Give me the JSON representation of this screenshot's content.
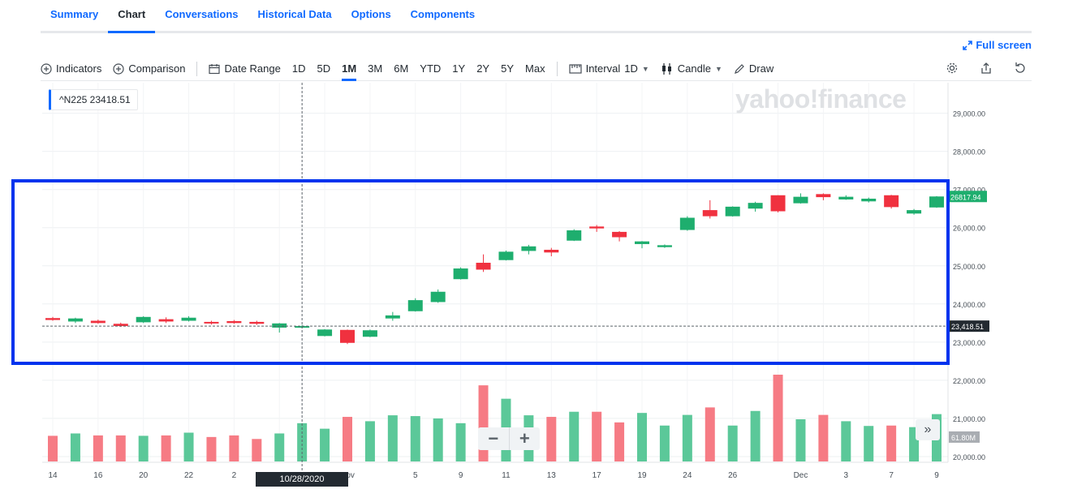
{
  "tabs": [
    {
      "label": "Summary",
      "active": false
    },
    {
      "label": "Chart",
      "active": true
    },
    {
      "label": "Conversations",
      "active": false
    },
    {
      "label": "Historical Data",
      "active": false
    },
    {
      "label": "Options",
      "active": false
    },
    {
      "label": "Components",
      "active": false
    }
  ],
  "fullscreen_label": "Full screen",
  "toolbar": {
    "indicators": "Indicators",
    "comparison": "Comparison",
    "date_range": "Date Range",
    "ranges": [
      "1D",
      "5D",
      "1M",
      "3M",
      "6M",
      "YTD",
      "1Y",
      "2Y",
      "5Y",
      "Max"
    ],
    "active_range": "1M",
    "interval_label": "Interval",
    "interval_value": "1D",
    "chart_style": "Candle",
    "draw": "Draw"
  },
  "legend": {
    "symbol": "^N225",
    "value": "23418.51"
  },
  "watermark": "yahoo!finance",
  "cursor_date": "10/28/2020",
  "colors": {
    "up": "#1eae6e",
    "down": "#f0313f",
    "vol_up": "#5bc899",
    "vol_down": "#f67b84",
    "accent": "#0f69ff",
    "highlight": "#0033ee"
  },
  "chart_data": {
    "type": "candlestick",
    "ylim": [
      19850,
      29800
    ],
    "y_ticks": [
      "29,000.00",
      "28,000.00",
      "27,000.00",
      "26,000.00",
      "25,000.00",
      "24,000.00",
      "23,000.00",
      "22,000.00",
      "21,000.00",
      "20,000.00"
    ],
    "y_tick_values": [
      29000,
      28000,
      27000,
      26000,
      25000,
      24000,
      23000,
      22000,
      21000,
      20000
    ],
    "x_tick_labels": [
      {
        "label": "14",
        "i": 0
      },
      {
        "label": "16",
        "i": 2
      },
      {
        "label": "20",
        "i": 4
      },
      {
        "label": "22",
        "i": 6
      },
      {
        "label": "2",
        "i": 8
      },
      {
        "label": "Nov",
        "i": 13
      },
      {
        "label": "5",
        "i": 16
      },
      {
        "label": "9",
        "i": 18
      },
      {
        "label": "11",
        "i": 20
      },
      {
        "label": "13",
        "i": 22
      },
      {
        "label": "17",
        "i": 24
      },
      {
        "label": "19",
        "i": 26
      },
      {
        "label": "24",
        "i": 28
      },
      {
        "label": "26",
        "i": 30
      },
      {
        "label": "Dec",
        "i": 33
      },
      {
        "label": "3",
        "i": 35
      },
      {
        "label": "7",
        "i": 37
      },
      {
        "label": "9",
        "i": 39
      }
    ],
    "candles": [
      {
        "o": 23630,
        "h": 23660,
        "l": 23560,
        "c": 23580
      },
      {
        "o": 23540,
        "h": 23640,
        "l": 23500,
        "c": 23620
      },
      {
        "o": 23560,
        "h": 23590,
        "l": 23480,
        "c": 23500
      },
      {
        "o": 23480,
        "h": 23510,
        "l": 23400,
        "c": 23420
      },
      {
        "o": 23520,
        "h": 23680,
        "l": 23500,
        "c": 23660
      },
      {
        "o": 23600,
        "h": 23650,
        "l": 23500,
        "c": 23540
      },
      {
        "o": 23560,
        "h": 23680,
        "l": 23540,
        "c": 23640
      },
      {
        "o": 23530,
        "h": 23560,
        "l": 23460,
        "c": 23490
      },
      {
        "o": 23550,
        "h": 23580,
        "l": 23480,
        "c": 23500
      },
      {
        "o": 23530,
        "h": 23560,
        "l": 23450,
        "c": 23480
      },
      {
        "o": 23380,
        "h": 23500,
        "l": 23250,
        "c": 23490
      },
      {
        "o": 23400,
        "h": 23450,
        "l": 23360,
        "c": 23420
      },
      {
        "o": 23160,
        "h": 23340,
        "l": 23150,
        "c": 23330
      },
      {
        "o": 23320,
        "h": 23330,
        "l": 22950,
        "c": 22980
      },
      {
        "o": 23140,
        "h": 23330,
        "l": 23130,
        "c": 23310
      },
      {
        "o": 23620,
        "h": 23790,
        "l": 23560,
        "c": 23700
      },
      {
        "o": 23810,
        "h": 24150,
        "l": 23800,
        "c": 24100
      },
      {
        "o": 24050,
        "h": 24380,
        "l": 24030,
        "c": 24320
      },
      {
        "o": 24650,
        "h": 24960,
        "l": 24640,
        "c": 24930
      },
      {
        "o": 25080,
        "h": 25300,
        "l": 24840,
        "c": 24900
      },
      {
        "o": 25150,
        "h": 25400,
        "l": 25140,
        "c": 25370
      },
      {
        "o": 25390,
        "h": 25550,
        "l": 25300,
        "c": 25510
      },
      {
        "o": 25420,
        "h": 25470,
        "l": 25250,
        "c": 25350
      },
      {
        "o": 25660,
        "h": 25960,
        "l": 25650,
        "c": 25930
      },
      {
        "o": 26030,
        "h": 26070,
        "l": 25890,
        "c": 25980
      },
      {
        "o": 25890,
        "h": 25910,
        "l": 25640,
        "c": 25750
      },
      {
        "o": 25570,
        "h": 25650,
        "l": 25460,
        "c": 25640
      },
      {
        "o": 25490,
        "h": 25560,
        "l": 25470,
        "c": 25540
      },
      {
        "o": 25940,
        "h": 26300,
        "l": 25920,
        "c": 26260
      },
      {
        "o": 26460,
        "h": 26720,
        "l": 26240,
        "c": 26300
      },
      {
        "o": 26300,
        "h": 26560,
        "l": 26290,
        "c": 26550
      },
      {
        "o": 26500,
        "h": 26680,
        "l": 26420,
        "c": 26650
      },
      {
        "o": 26850,
        "h": 26850,
        "l": 26400,
        "c": 26430
      },
      {
        "o": 26640,
        "h": 26900,
        "l": 26630,
        "c": 26810
      },
      {
        "o": 26880,
        "h": 26900,
        "l": 26720,
        "c": 26800
      },
      {
        "o": 26740,
        "h": 26850,
        "l": 26730,
        "c": 26810
      },
      {
        "o": 26690,
        "h": 26790,
        "l": 26660,
        "c": 26760
      },
      {
        "o": 26850,
        "h": 26860,
        "l": 26500,
        "c": 26540
      },
      {
        "o": 26370,
        "h": 26490,
        "l": 26340,
        "c": 26460
      },
      {
        "o": 26530,
        "h": 26830,
        "l": 26520,
        "c": 26817.94
      }
    ],
    "volume": [
      65,
      71,
      66,
      66,
      65,
      66,
      73,
      62,
      66,
      57,
      71,
      97,
      83,
      113,
      102,
      117,
      115,
      109,
      97,
      193,
      159,
      117,
      113,
      126,
      126,
      99,
      123,
      91,
      118,
      137,
      91,
      128,
      220,
      107,
      118,
      102,
      90,
      91,
      87,
      120
    ],
    "last_price_label": "23,418.51",
    "last_close_label": "26817.94",
    "volume_label": "61.80M",
    "volume_label_value": 61.8
  }
}
